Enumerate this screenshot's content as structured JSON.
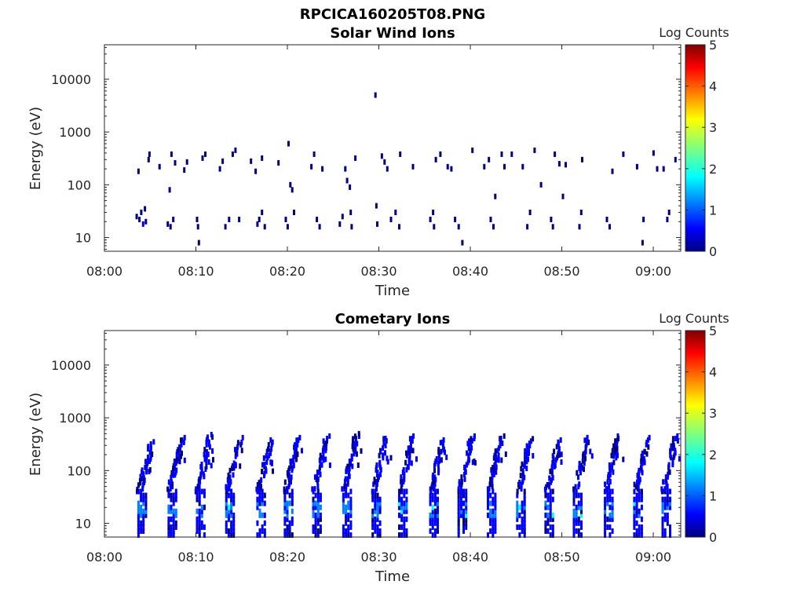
{
  "figure_title": "RPCICA160205T08.PNG",
  "panels": [
    {
      "title": "Solar Wind Ions",
      "colorbar_label": "Log Counts"
    },
    {
      "title": "Cometary Ions",
      "colorbar_label": "Log Counts"
    }
  ],
  "colors": {
    "colormap": [
      "#00007f",
      "#0000ff",
      "#007fff",
      "#00ffff",
      "#7fff7f",
      "#ffff00",
      "#ff7f00",
      "#ff0000",
      "#7f0000"
    ]
  },
  "chart_data": [
    {
      "type": "heatmap",
      "title": "Solar Wind Ions",
      "xlabel": "Time",
      "ylabel": "Energy (eV)",
      "x_ticks": [
        "08:00",
        "08:10",
        "08:20",
        "08:30",
        "08:40",
        "08:50",
        "09:00"
      ],
      "y_ticks": [
        "10",
        "100",
        "1000",
        "10000"
      ],
      "y_scale": "log",
      "xlim_minutes_after_0800": [
        0,
        63
      ],
      "ylim": [
        5.5,
        45000
      ],
      "colorbar": {
        "label": "Log Counts",
        "ticks": [
          "0",
          "1",
          "2",
          "3",
          "4",
          "5"
        ],
        "range": [
          0,
          5
        ]
      },
      "points": [
        [
          3.4,
          25,
          0.3
        ],
        [
          3.7,
          22,
          0.3
        ],
        [
          3.9,
          30,
          0.3
        ],
        [
          4.1,
          18,
          0.4
        ],
        [
          4.3,
          35,
          0.3
        ],
        [
          4.4,
          20,
          0.3
        ],
        [
          3.6,
          180,
          0.3
        ],
        [
          4.7,
          300,
          0.3
        ],
        [
          4.8,
          380,
          0.3
        ],
        [
          5.9,
          220,
          0.3
        ],
        [
          6.8,
          18,
          0.3
        ],
        [
          7.1,
          16,
          0.3
        ],
        [
          7.0,
          80,
          0.3
        ],
        [
          7.2,
          380,
          0.3
        ],
        [
          7.4,
          22,
          0.3
        ],
        [
          7.6,
          260,
          0.3
        ],
        [
          8.6,
          190,
          0.3
        ],
        [
          8.9,
          270,
          0.3
        ],
        [
          10.0,
          22,
          0.3
        ],
        [
          10.1,
          16,
          0.3
        ],
        [
          10.2,
          8,
          0.3
        ],
        [
          10.6,
          320,
          0.3
        ],
        [
          10.9,
          380,
          0.3
        ],
        [
          12.5,
          200,
          0.3
        ],
        [
          12.8,
          280,
          0.3
        ],
        [
          13.1,
          16,
          0.3
        ],
        [
          13.5,
          22,
          0.3
        ],
        [
          13.9,
          380,
          0.3
        ],
        [
          14.2,
          450,
          0.3
        ],
        [
          14.6,
          22,
          0.3
        ],
        [
          15.9,
          280,
          0.3
        ],
        [
          16.4,
          180,
          0.3
        ],
        [
          16.6,
          18,
          0.3
        ],
        [
          16.8,
          22,
          0.3
        ],
        [
          17.1,
          30,
          0.3
        ],
        [
          17.4,
          16,
          0.3
        ],
        [
          17.1,
          320,
          0.3
        ],
        [
          18.9,
          260,
          0.3
        ],
        [
          19.7,
          22,
          0.3
        ],
        [
          19.9,
          16,
          0.3
        ],
        [
          20.0,
          600,
          0.3
        ],
        [
          20.2,
          100,
          0.3
        ],
        [
          20.6,
          30,
          0.3
        ],
        [
          20.4,
          80,
          0.3
        ],
        [
          22.5,
          220,
          0.3
        ],
        [
          22.8,
          380,
          0.3
        ],
        [
          23.1,
          22,
          0.3
        ],
        [
          23.4,
          16,
          0.3
        ],
        [
          23.7,
          200,
          0.3
        ],
        [
          25.6,
          18,
          0.3
        ],
        [
          25.9,
          25,
          0.3
        ],
        [
          26.2,
          200,
          0.3
        ],
        [
          26.4,
          120,
          0.3
        ],
        [
          26.7,
          90,
          0.3
        ],
        [
          26.8,
          30,
          0.3
        ],
        [
          26.9,
          16,
          0.3
        ],
        [
          27.3,
          320,
          0.3
        ],
        [
          29.5,
          5000,
          0.3
        ],
        [
          29.6,
          40,
          0.3
        ],
        [
          29.7,
          18,
          0.3
        ],
        [
          30.2,
          350,
          0.3
        ],
        [
          30.5,
          270,
          0.3
        ],
        [
          30.8,
          200,
          0.3
        ],
        [
          31.2,
          22,
          0.3
        ],
        [
          31.7,
          30,
          0.3
        ],
        [
          32.1,
          16,
          0.3
        ],
        [
          32.2,
          380,
          0.3
        ],
        [
          33.6,
          220,
          0.3
        ],
        [
          35.5,
          22,
          0.3
        ],
        [
          35.8,
          30,
          0.3
        ],
        [
          35.9,
          16,
          0.3
        ],
        [
          36.1,
          300,
          0.3
        ],
        [
          36.6,
          380,
          0.3
        ],
        [
          37.4,
          220,
          0.3
        ],
        [
          37.8,
          200,
          0.3
        ],
        [
          38.2,
          22,
          0.3
        ],
        [
          38.6,
          16,
          0.3
        ],
        [
          39.0,
          8,
          0.3
        ],
        [
          40.1,
          450,
          0.3
        ],
        [
          41.4,
          220,
          0.3
        ],
        [
          41.9,
          300,
          0.3
        ],
        [
          42.1,
          22,
          0.3
        ],
        [
          42.4,
          16,
          0.3
        ],
        [
          42.6,
          60,
          0.3
        ],
        [
          43.3,
          380,
          0.3
        ],
        [
          43.6,
          220,
          0.3
        ],
        [
          44.4,
          380,
          0.3
        ],
        [
          45.6,
          220,
          0.3
        ],
        [
          46.1,
          16,
          0.3
        ],
        [
          46.4,
          30,
          0.3
        ],
        [
          46.9,
          450,
          0.3
        ],
        [
          47.6,
          100,
          0.3
        ],
        [
          48.7,
          22,
          0.3
        ],
        [
          48.9,
          16,
          0.3
        ],
        [
          49.1,
          380,
          0.3
        ],
        [
          49.6,
          250,
          0.3
        ],
        [
          50.0,
          60,
          0.3
        ],
        [
          50.3,
          240,
          0.3
        ],
        [
          51.8,
          16,
          0.3
        ],
        [
          52.0,
          30,
          0.3
        ],
        [
          52.1,
          300,
          0.3
        ],
        [
          54.8,
          22,
          0.3
        ],
        [
          55.1,
          16,
          0.3
        ],
        [
          55.4,
          180,
          0.3
        ],
        [
          56.6,
          380,
          0.3
        ],
        [
          58.1,
          220,
          0.3
        ],
        [
          58.7,
          8,
          0.3
        ],
        [
          58.8,
          22,
          0.3
        ],
        [
          59.9,
          400,
          0.3
        ],
        [
          60.3,
          200,
          0.3
        ],
        [
          61.0,
          200,
          0.3
        ],
        [
          61.4,
          22,
          0.3
        ],
        [
          61.6,
          30,
          0.3
        ],
        [
          62.3,
          300,
          0.3
        ]
      ]
    },
    {
      "type": "heatmap",
      "title": "Cometary Ions",
      "xlabel": "Time",
      "ylabel": "Energy (eV)",
      "x_ticks": [
        "08:00",
        "08:10",
        "08:20",
        "08:30",
        "08:40",
        "08:50",
        "09:00"
      ],
      "y_ticks": [
        "10",
        "100",
        "1000",
        "10000"
      ],
      "y_scale": "log",
      "xlim_minutes_after_0800": [
        0,
        63
      ],
      "ylim": [
        5.5,
        45000
      ],
      "colorbar": {
        "label": "Log Counts",
        "ticks": [
          "0",
          "1",
          "2",
          "3",
          "4",
          "5"
        ],
        "range": [
          0,
          5
        ]
      },
      "bursts": [
        3.6,
        6.9,
        10.0,
        13.2,
        16.6,
        19.6,
        22.7,
        26.0,
        29.2,
        32.1,
        35.5,
        38.6,
        41.8,
        45.0,
        48.1,
        51.2,
        54.6,
        57.8,
        60.9
      ],
      "burst_peak_energy_eV": [
        350,
        420,
        480,
        420,
        380,
        420,
        450,
        500,
        450,
        450,
        420,
        450,
        450,
        400,
        380,
        420,
        450,
        420,
        450
      ],
      "burst_core_log_counts": 1.3
    }
  ]
}
